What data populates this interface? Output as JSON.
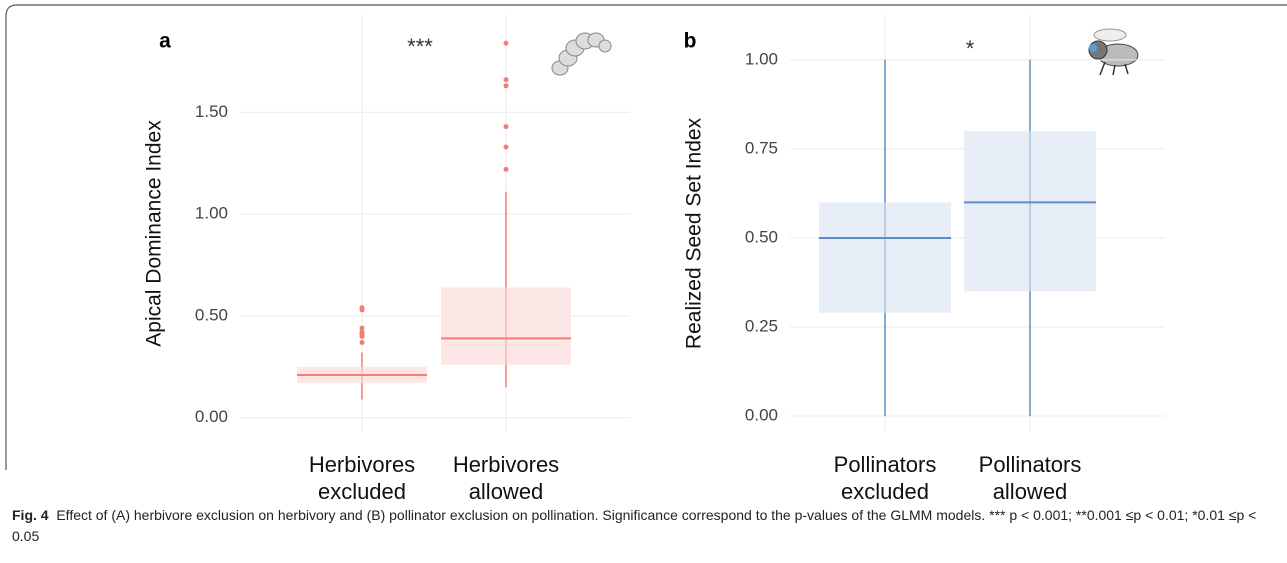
{
  "chart_data": [
    {
      "type": "box",
      "panel_label": "a",
      "annotation": "***",
      "ylabel": "Apical Dominance Index",
      "categories": [
        "Herbivores excluded",
        "Herbivores allowed"
      ],
      "color": "#f07f72",
      "fill": "#fde3e3",
      "boxes": [
        {
          "whisker_low": 0.09,
          "q1": 0.17,
          "median": 0.21,
          "q3": 0.25,
          "whisker_high": 0.32,
          "outliers": [
            0.37,
            0.4,
            0.41,
            0.42,
            0.44,
            0.53,
            0.54
          ]
        },
        {
          "whisker_low": 0.15,
          "q1": 0.26,
          "median": 0.39,
          "q3": 0.64,
          "whisker_high": 1.11,
          "outliers": [
            1.22,
            1.33,
            1.43,
            1.63,
            1.66,
            1.84
          ]
        }
      ],
      "ylim": [
        -0.07,
        1.88
      ],
      "yticks": [
        {
          "value": 0,
          "label": "0.00"
        },
        {
          "value": 0.5,
          "label": "0.50"
        },
        {
          "value": 1,
          "label": "1.00"
        },
        {
          "value": 1.5,
          "label": "1.50"
        }
      ],
      "grid": true
    },
    {
      "type": "box",
      "panel_label": "b",
      "annotation": "*",
      "ylabel": "Realized Seed Set Index",
      "categories": [
        "Pollinators excluded",
        "Pollinators allowed"
      ],
      "color": "#5b8dc9",
      "fill": "#e6ecf5",
      "boxes": [
        {
          "whisker_low": 0,
          "q1": 0.29,
          "median": 0.5,
          "q3": 0.6,
          "whisker_high": 1,
          "outliers": []
        },
        {
          "whisker_low": 0,
          "q1": 0.35,
          "median": 0.6,
          "q3": 0.8,
          "whisker_high": 1,
          "outliers": []
        }
      ],
      "ylim": [
        -0.045,
        1.07
      ],
      "yticks": [
        {
          "value": 0,
          "label": "0.00"
        },
        {
          "value": 0.25,
          "label": "0.25"
        },
        {
          "value": 0.5,
          "label": "0.50"
        },
        {
          "value": 0.75,
          "label": "0.75"
        },
        {
          "value": 1,
          "label": "1.00"
        }
      ],
      "grid": true
    }
  ],
  "caption": {
    "label": "Fig. 4",
    "text": "Effect of (A) herbivore exclusion on herbivory and (B) pollinator exclusion on pollination. Significance correspond to the p-values of the GLMM models. *** p < 0.001; **0.001 ≤p < 0.01; *0.01 ≤p < 0.05"
  }
}
